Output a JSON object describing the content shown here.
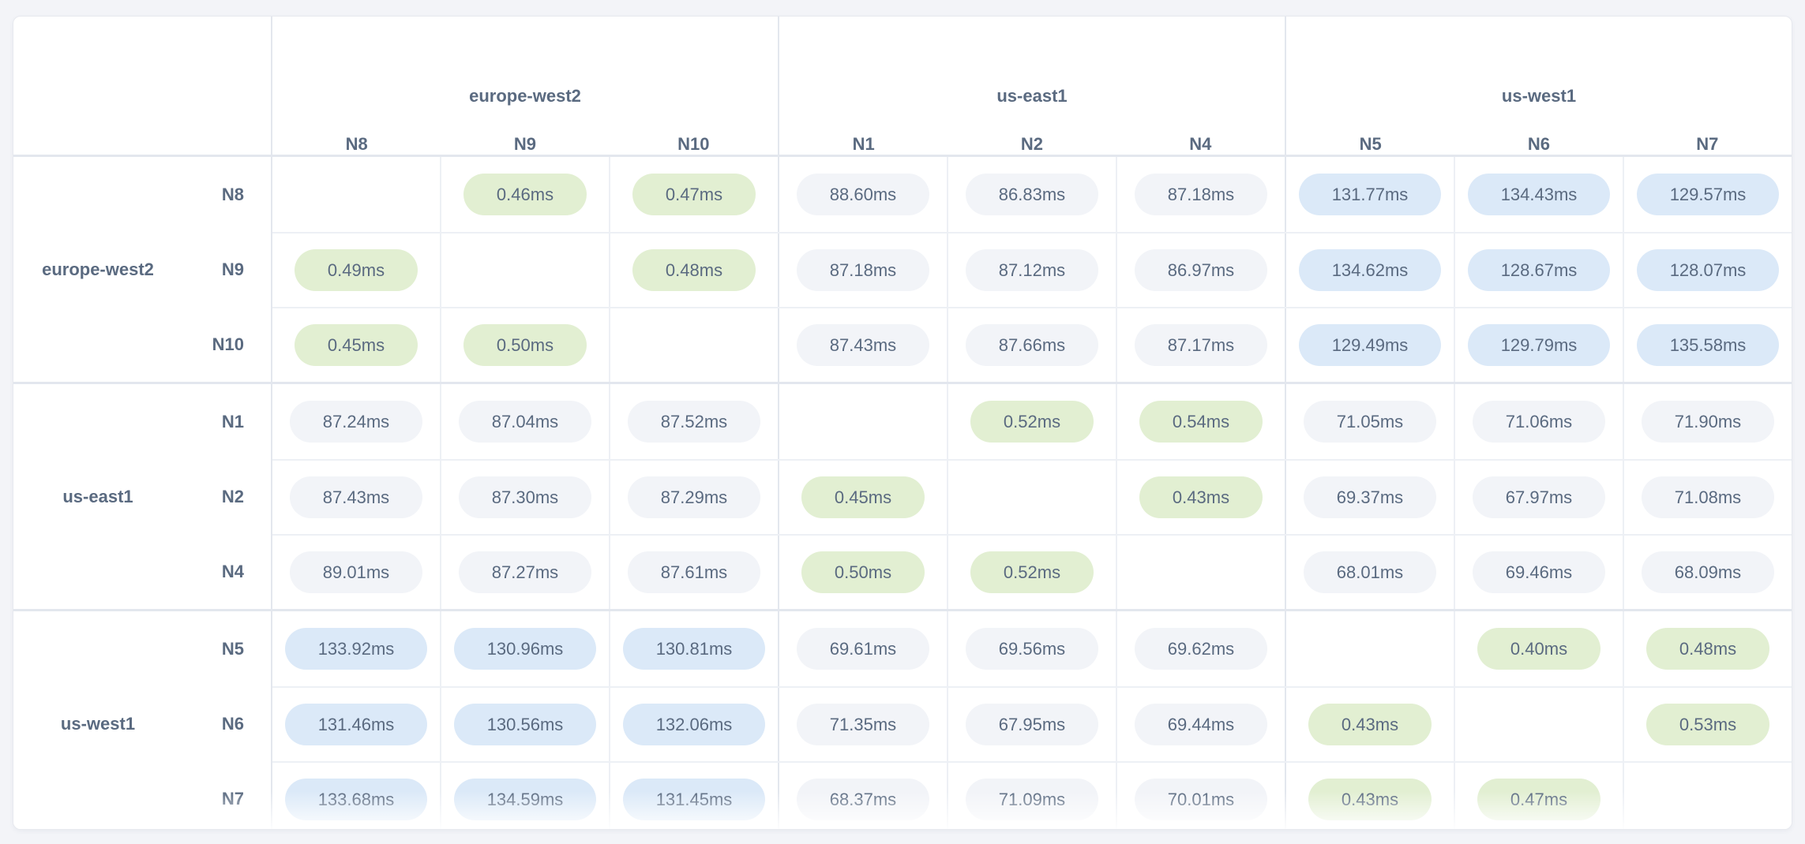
{
  "colors": {
    "page_bg": "#f3f4f8",
    "card_bg": "#ffffff",
    "card_border": "#e7e9ef",
    "grid_line_soft": "#edf0f5",
    "grid_line_strong": "#e3e7ee",
    "text": "#5a6a80",
    "pill_low": "#e2efd2",
    "pill_mid": "#f2f4f8",
    "pill_high": "#dbe9f8"
  },
  "column_groups": [
    {
      "region": "europe-west2",
      "nodes": [
        "N8",
        "N9",
        "N10"
      ]
    },
    {
      "region": "us-east1",
      "nodes": [
        "N1",
        "N2",
        "N4"
      ]
    },
    {
      "region": "us-west1",
      "nodes": [
        "N5",
        "N6",
        "N7"
      ]
    }
  ],
  "row_groups": [
    {
      "region": "europe-west2",
      "rows": [
        {
          "node": "N8",
          "cells": [
            null,
            {
              "text": "0.46ms",
              "level": "low"
            },
            {
              "text": "0.47ms",
              "level": "low"
            },
            {
              "text": "88.60ms",
              "level": "mid"
            },
            {
              "text": "86.83ms",
              "level": "mid"
            },
            {
              "text": "87.18ms",
              "level": "mid"
            },
            {
              "text": "131.77ms",
              "level": "high"
            },
            {
              "text": "134.43ms",
              "level": "high"
            },
            {
              "text": "129.57ms",
              "level": "high"
            }
          ]
        },
        {
          "node": "N9",
          "cells": [
            {
              "text": "0.49ms",
              "level": "low"
            },
            null,
            {
              "text": "0.48ms",
              "level": "low"
            },
            {
              "text": "87.18ms",
              "level": "mid"
            },
            {
              "text": "87.12ms",
              "level": "mid"
            },
            {
              "text": "86.97ms",
              "level": "mid"
            },
            {
              "text": "134.62ms",
              "level": "high"
            },
            {
              "text": "128.67ms",
              "level": "high"
            },
            {
              "text": "128.07ms",
              "level": "high"
            }
          ]
        },
        {
          "node": "N10",
          "cells": [
            {
              "text": "0.45ms",
              "level": "low"
            },
            {
              "text": "0.50ms",
              "level": "low"
            },
            null,
            {
              "text": "87.43ms",
              "level": "mid"
            },
            {
              "text": "87.66ms",
              "level": "mid"
            },
            {
              "text": "87.17ms",
              "level": "mid"
            },
            {
              "text": "129.49ms",
              "level": "high"
            },
            {
              "text": "129.79ms",
              "level": "high"
            },
            {
              "text": "135.58ms",
              "level": "high"
            }
          ]
        }
      ]
    },
    {
      "region": "us-east1",
      "rows": [
        {
          "node": "N1",
          "cells": [
            {
              "text": "87.24ms",
              "level": "mid"
            },
            {
              "text": "87.04ms",
              "level": "mid"
            },
            {
              "text": "87.52ms",
              "level": "mid"
            },
            null,
            {
              "text": "0.52ms",
              "level": "low"
            },
            {
              "text": "0.54ms",
              "level": "low"
            },
            {
              "text": "71.05ms",
              "level": "mid"
            },
            {
              "text": "71.06ms",
              "level": "mid"
            },
            {
              "text": "71.90ms",
              "level": "mid"
            }
          ]
        },
        {
          "node": "N2",
          "cells": [
            {
              "text": "87.43ms",
              "level": "mid"
            },
            {
              "text": "87.30ms",
              "level": "mid"
            },
            {
              "text": "87.29ms",
              "level": "mid"
            },
            {
              "text": "0.45ms",
              "level": "low"
            },
            null,
            {
              "text": "0.43ms",
              "level": "low"
            },
            {
              "text": "69.37ms",
              "level": "mid"
            },
            {
              "text": "67.97ms",
              "level": "mid"
            },
            {
              "text": "71.08ms",
              "level": "mid"
            }
          ]
        },
        {
          "node": "N4",
          "cells": [
            {
              "text": "89.01ms",
              "level": "mid"
            },
            {
              "text": "87.27ms",
              "level": "mid"
            },
            {
              "text": "87.61ms",
              "level": "mid"
            },
            {
              "text": "0.50ms",
              "level": "low"
            },
            {
              "text": "0.52ms",
              "level": "low"
            },
            null,
            {
              "text": "68.01ms",
              "level": "mid"
            },
            {
              "text": "69.46ms",
              "level": "mid"
            },
            {
              "text": "68.09ms",
              "level": "mid"
            }
          ]
        }
      ]
    },
    {
      "region": "us-west1",
      "rows": [
        {
          "node": "N5",
          "cells": [
            {
              "text": "133.92ms",
              "level": "high"
            },
            {
              "text": "130.96ms",
              "level": "high"
            },
            {
              "text": "130.81ms",
              "level": "high"
            },
            {
              "text": "69.61ms",
              "level": "mid"
            },
            {
              "text": "69.56ms",
              "level": "mid"
            },
            {
              "text": "69.62ms",
              "level": "mid"
            },
            null,
            {
              "text": "0.40ms",
              "level": "low"
            },
            {
              "text": "0.48ms",
              "level": "low"
            }
          ]
        },
        {
          "node": "N6",
          "cells": [
            {
              "text": "131.46ms",
              "level": "high"
            },
            {
              "text": "130.56ms",
              "level": "high"
            },
            {
              "text": "132.06ms",
              "level": "high"
            },
            {
              "text": "71.35ms",
              "level": "mid"
            },
            {
              "text": "67.95ms",
              "level": "mid"
            },
            {
              "text": "69.44ms",
              "level": "mid"
            },
            {
              "text": "0.43ms",
              "level": "low"
            },
            null,
            {
              "text": "0.53ms",
              "level": "low"
            }
          ]
        },
        {
          "node": "N7",
          "cells": [
            {
              "text": "133.68ms",
              "level": "high"
            },
            {
              "text": "134.59ms",
              "level": "high"
            },
            {
              "text": "131.45ms",
              "level": "high"
            },
            {
              "text": "68.37ms",
              "level": "mid"
            },
            {
              "text": "71.09ms",
              "level": "mid"
            },
            {
              "text": "70.01ms",
              "level": "mid"
            },
            {
              "text": "0.43ms",
              "level": "low"
            },
            {
              "text": "0.47ms",
              "level": "low"
            },
            null
          ]
        }
      ]
    }
  ],
  "chart_data": {
    "type": "heatmap",
    "title": "",
    "unit": "ms",
    "columns": [
      "europe-west2/N8",
      "europe-west2/N9",
      "europe-west2/N10",
      "us-east1/N1",
      "us-east1/N2",
      "us-east1/N4",
      "us-west1/N5",
      "us-west1/N6",
      "us-west1/N7"
    ],
    "rows": [
      "europe-west2/N8",
      "europe-west2/N9",
      "europe-west2/N10",
      "us-east1/N1",
      "us-east1/N2",
      "us-east1/N4",
      "us-west1/N5",
      "us-west1/N6",
      "us-west1/N7"
    ],
    "values": [
      [
        null,
        0.46,
        0.47,
        88.6,
        86.83,
        87.18,
        131.77,
        134.43,
        129.57
      ],
      [
        0.49,
        null,
        0.48,
        87.18,
        87.12,
        86.97,
        134.62,
        128.67,
        128.07
      ],
      [
        0.45,
        0.5,
        null,
        87.43,
        87.66,
        87.17,
        129.49,
        129.79,
        135.58
      ],
      [
        87.24,
        87.04,
        87.52,
        null,
        0.52,
        0.54,
        71.05,
        71.06,
        71.9
      ],
      [
        87.43,
        87.3,
        87.29,
        0.45,
        null,
        0.43,
        69.37,
        67.97,
        71.08
      ],
      [
        89.01,
        87.27,
        87.61,
        0.5,
        0.52,
        null,
        68.01,
        69.46,
        68.09
      ],
      [
        133.92,
        130.96,
        130.81,
        69.61,
        69.56,
        69.62,
        null,
        0.4,
        0.48
      ],
      [
        131.46,
        130.56,
        132.06,
        71.35,
        67.95,
        69.44,
        0.43,
        null,
        0.53
      ],
      [
        133.68,
        134.59,
        131.45,
        68.37,
        71.09,
        70.01,
        0.43,
        0.47,
        null
      ]
    ],
    "cell_color_levels": {
      "low": "#e2efd2",
      "mid": "#f2f4f8",
      "high": "#dbe9f8"
    },
    "layout": {
      "grid": true,
      "diagonal_blank": true,
      "row_groups_by_region": true,
      "column_groups_by_region": true
    }
  }
}
